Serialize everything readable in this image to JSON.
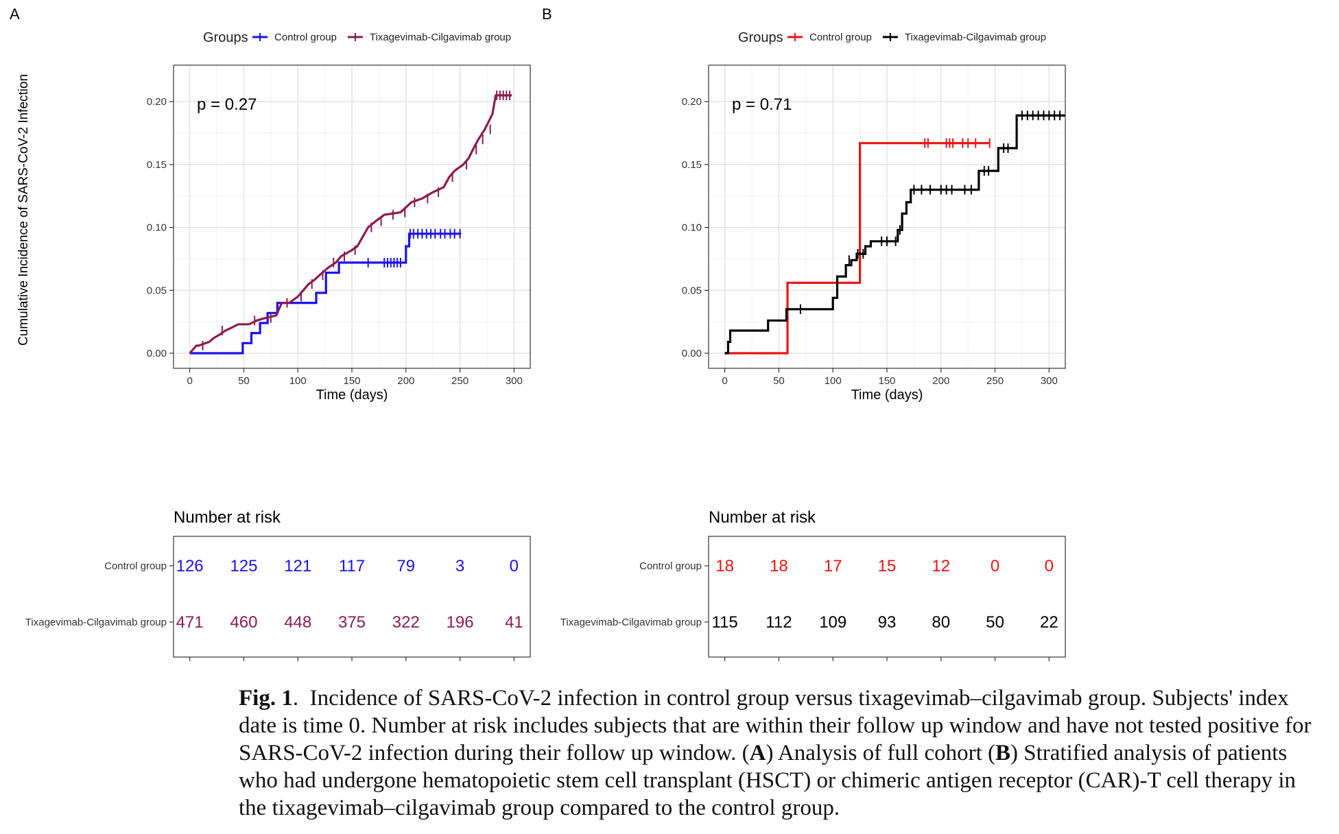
{
  "caption": {
    "label": "Fig. 1",
    "text": "Incidence of SARS-CoV-2 infection in control group versus tixagevimab–cilgavimab group. Subjects' index date is time 0. Number at risk includes subjects that are within their follow up window and have not tested positive for SARS-CoV-2 infection during their follow up window.",
    "part_a": "A",
    "part_a_text": "Analysis of full cohort",
    "part_b": "B",
    "part_b_text": "Stratified analysis of patients who had undergone hematopoietic stem cell transplant (HSCT) or chimeric antigen receptor (CAR)-T cell therapy in the tixagevimab–cilgavimab group compared to the control group."
  },
  "chart_data": [
    {
      "panel": "A",
      "type": "line",
      "step": true,
      "legend_title": "Groups",
      "legend_position": "top",
      "ylabel": "Cumulative Incidence  of SARS-CoV-2 Infection",
      "xlabel": "Time (days)",
      "xlim": [
        -15,
        315
      ],
      "ylim": [
        -0.012,
        0.229
      ],
      "x_ticks": [
        0,
        50,
        100,
        150,
        200,
        250,
        300
      ],
      "y_ticks": [
        0.0,
        0.05,
        0.1,
        0.15,
        0.2
      ],
      "y_tick_labels": [
        "0.00",
        "0.05",
        "0.10",
        "0.15",
        "0.20"
      ],
      "grid": true,
      "annotation": "p = 0.27",
      "series": [
        {
          "name": "Control group",
          "color": "#1a10f0",
          "x": [
            0,
            49,
            49,
            57,
            57,
            65,
            65,
            72,
            72,
            81,
            81,
            117,
            117,
            126,
            126,
            138,
            138,
            200,
            200,
            203,
            203,
            251
          ],
          "y": [
            0,
            0,
            0.008,
            0.008,
            0.016,
            0.016,
            0.024,
            0.024,
            0.032,
            0.032,
            0.04,
            0.04,
            0.048,
            0.048,
            0.064,
            0.064,
            0.072,
            0.072,
            0.085,
            0.085,
            0.095,
            0.095
          ],
          "censor_x": [
            165,
            180,
            183,
            186,
            189,
            192,
            195,
            204,
            207,
            211,
            215,
            219,
            223,
            227,
            232,
            236,
            241,
            245,
            250
          ],
          "censor_y": [
            0.072,
            0.072,
            0.072,
            0.072,
            0.072,
            0.072,
            0.072,
            0.095,
            0.095,
            0.095,
            0.095,
            0.095,
            0.095,
            0.095,
            0.095,
            0.095,
            0.095,
            0.095,
            0.095
          ]
        },
        {
          "name": "Tixagevimab-Cilgavimab group",
          "color": "#8c1d4f",
          "x": [
            0,
            3,
            6,
            8,
            18,
            22,
            28,
            33,
            38,
            45,
            55,
            62,
            70,
            80,
            85,
            92,
            100,
            105,
            110,
            115,
            120,
            128,
            135,
            140,
            150,
            155,
            165,
            172,
            180,
            195,
            205,
            215,
            225,
            235,
            240,
            245,
            253,
            258,
            262,
            267,
            273,
            280,
            283,
            298
          ],
          "y": [
            0,
            0.003,
            0.006,
            0.006,
            0.009,
            0.012,
            0.015,
            0.018,
            0.02,
            0.023,
            0.023,
            0.026,
            0.028,
            0.03,
            0.04,
            0.04,
            0.045,
            0.05,
            0.055,
            0.058,
            0.062,
            0.068,
            0.072,
            0.077,
            0.082,
            0.085,
            0.1,
            0.105,
            0.11,
            0.112,
            0.12,
            0.123,
            0.128,
            0.132,
            0.14,
            0.145,
            0.15,
            0.155,
            0.162,
            0.17,
            0.178,
            0.19,
            0.205,
            0.205
          ],
          "censor_x": [
            12,
            30,
            60,
            75,
            90,
            103,
            113,
            123,
            133,
            143,
            153,
            168,
            177,
            188,
            199,
            208,
            220,
            230,
            243,
            256,
            265,
            271,
            278,
            284,
            287,
            290,
            293,
            296
          ],
          "censor_y": [
            0.006,
            0.018,
            0.026,
            0.028,
            0.04,
            0.045,
            0.055,
            0.062,
            0.072,
            0.077,
            0.082,
            0.1,
            0.105,
            0.11,
            0.112,
            0.12,
            0.123,
            0.128,
            0.14,
            0.15,
            0.162,
            0.17,
            0.178,
            0.205,
            0.205,
            0.205,
            0.205,
            0.205
          ]
        }
      ],
      "risk_table": {
        "title": "Number at risk",
        "rows": [
          {
            "label": "Control group",
            "color": "#1a10f0",
            "values": [
              "126",
              "125",
              "121",
              "117",
              "79",
              "3",
              "0"
            ]
          },
          {
            "label": "Tixagevimab-Cilgavimab group",
            "color": "#8c1d4f",
            "values": [
              "471",
              "460",
              "448",
              "375",
              "322",
              "196",
              "41"
            ]
          }
        ]
      }
    },
    {
      "panel": "B",
      "type": "line",
      "step": true,
      "legend_title": "Groups",
      "legend_position": "top",
      "ylabel": "",
      "xlabel": "Time (days)",
      "xlim": [
        -15,
        315
      ],
      "ylim": [
        -0.012,
        0.229
      ],
      "x_ticks": [
        0,
        50,
        100,
        150,
        200,
        250,
        300
      ],
      "y_ticks": [
        0.0,
        0.05,
        0.1,
        0.15,
        0.2
      ],
      "y_tick_labels": [
        "0.00",
        "0.05",
        "0.10",
        "0.15",
        "0.20"
      ],
      "grid": true,
      "annotation": "p = 0.71",
      "series": [
        {
          "name": "Control group",
          "color": "#ee1111",
          "x": [
            0,
            58,
            58,
            125,
            125,
            245
          ],
          "y": [
            0,
            0,
            0.056,
            0.056,
            0.167,
            0.167
          ],
          "censor_x": [
            185,
            188,
            205,
            208,
            211,
            220,
            225,
            232,
            245
          ],
          "censor_y": [
            0.167,
            0.167,
            0.167,
            0.167,
            0.167,
            0.167,
            0.167,
            0.167,
            0.167
          ]
        },
        {
          "name": "Tixagevimab-Cilgavimab group",
          "color": "#000000",
          "x": [
            0,
            3,
            3,
            5,
            5,
            40,
            40,
            57,
            57,
            100,
            100,
            104,
            104,
            112,
            112,
            117,
            117,
            122,
            122,
            130,
            130,
            135,
            135,
            160,
            160,
            164,
            164,
            168,
            168,
            172,
            172,
            235,
            235,
            253,
            253,
            270,
            270,
            315
          ],
          "y": [
            0,
            0,
            0.009,
            0.009,
            0.018,
            0.018,
            0.026,
            0.026,
            0.035,
            0.035,
            0.044,
            0.044,
            0.061,
            0.061,
            0.07,
            0.07,
            0.074,
            0.074,
            0.079,
            0.079,
            0.085,
            0.085,
            0.089,
            0.089,
            0.098,
            0.098,
            0.111,
            0.111,
            0.12,
            0.12,
            0.13,
            0.13,
            0.145,
            0.145,
            0.163,
            0.163,
            0.189,
            0.189
          ],
          "censor_x": [
            70,
            115,
            123,
            128,
            145,
            150,
            158,
            162,
            175,
            182,
            190,
            200,
            205,
            210,
            222,
            228,
            240,
            244,
            258,
            262,
            275,
            280,
            285,
            290,
            295,
            300,
            305,
            310
          ],
          "censor_y": [
            0.035,
            0.074,
            0.079,
            0.079,
            0.089,
            0.089,
            0.089,
            0.098,
            0.13,
            0.13,
            0.13,
            0.13,
            0.13,
            0.13,
            0.13,
            0.13,
            0.145,
            0.145,
            0.163,
            0.163,
            0.189,
            0.189,
            0.189,
            0.189,
            0.189,
            0.189,
            0.189,
            0.189
          ]
        }
      ],
      "risk_table": {
        "title": "Number at risk",
        "rows": [
          {
            "label": "Control group",
            "color": "#ee1111",
            "values": [
              "18",
              "18",
              "17",
              "15",
              "12",
              "0",
              "0"
            ]
          },
          {
            "label": "Tixagevimab-Cilgavimab group",
            "color": "#000000",
            "values": [
              "115",
              "112",
              "109",
              "93",
              "80",
              "50",
              "22"
            ]
          }
        ]
      }
    }
  ]
}
